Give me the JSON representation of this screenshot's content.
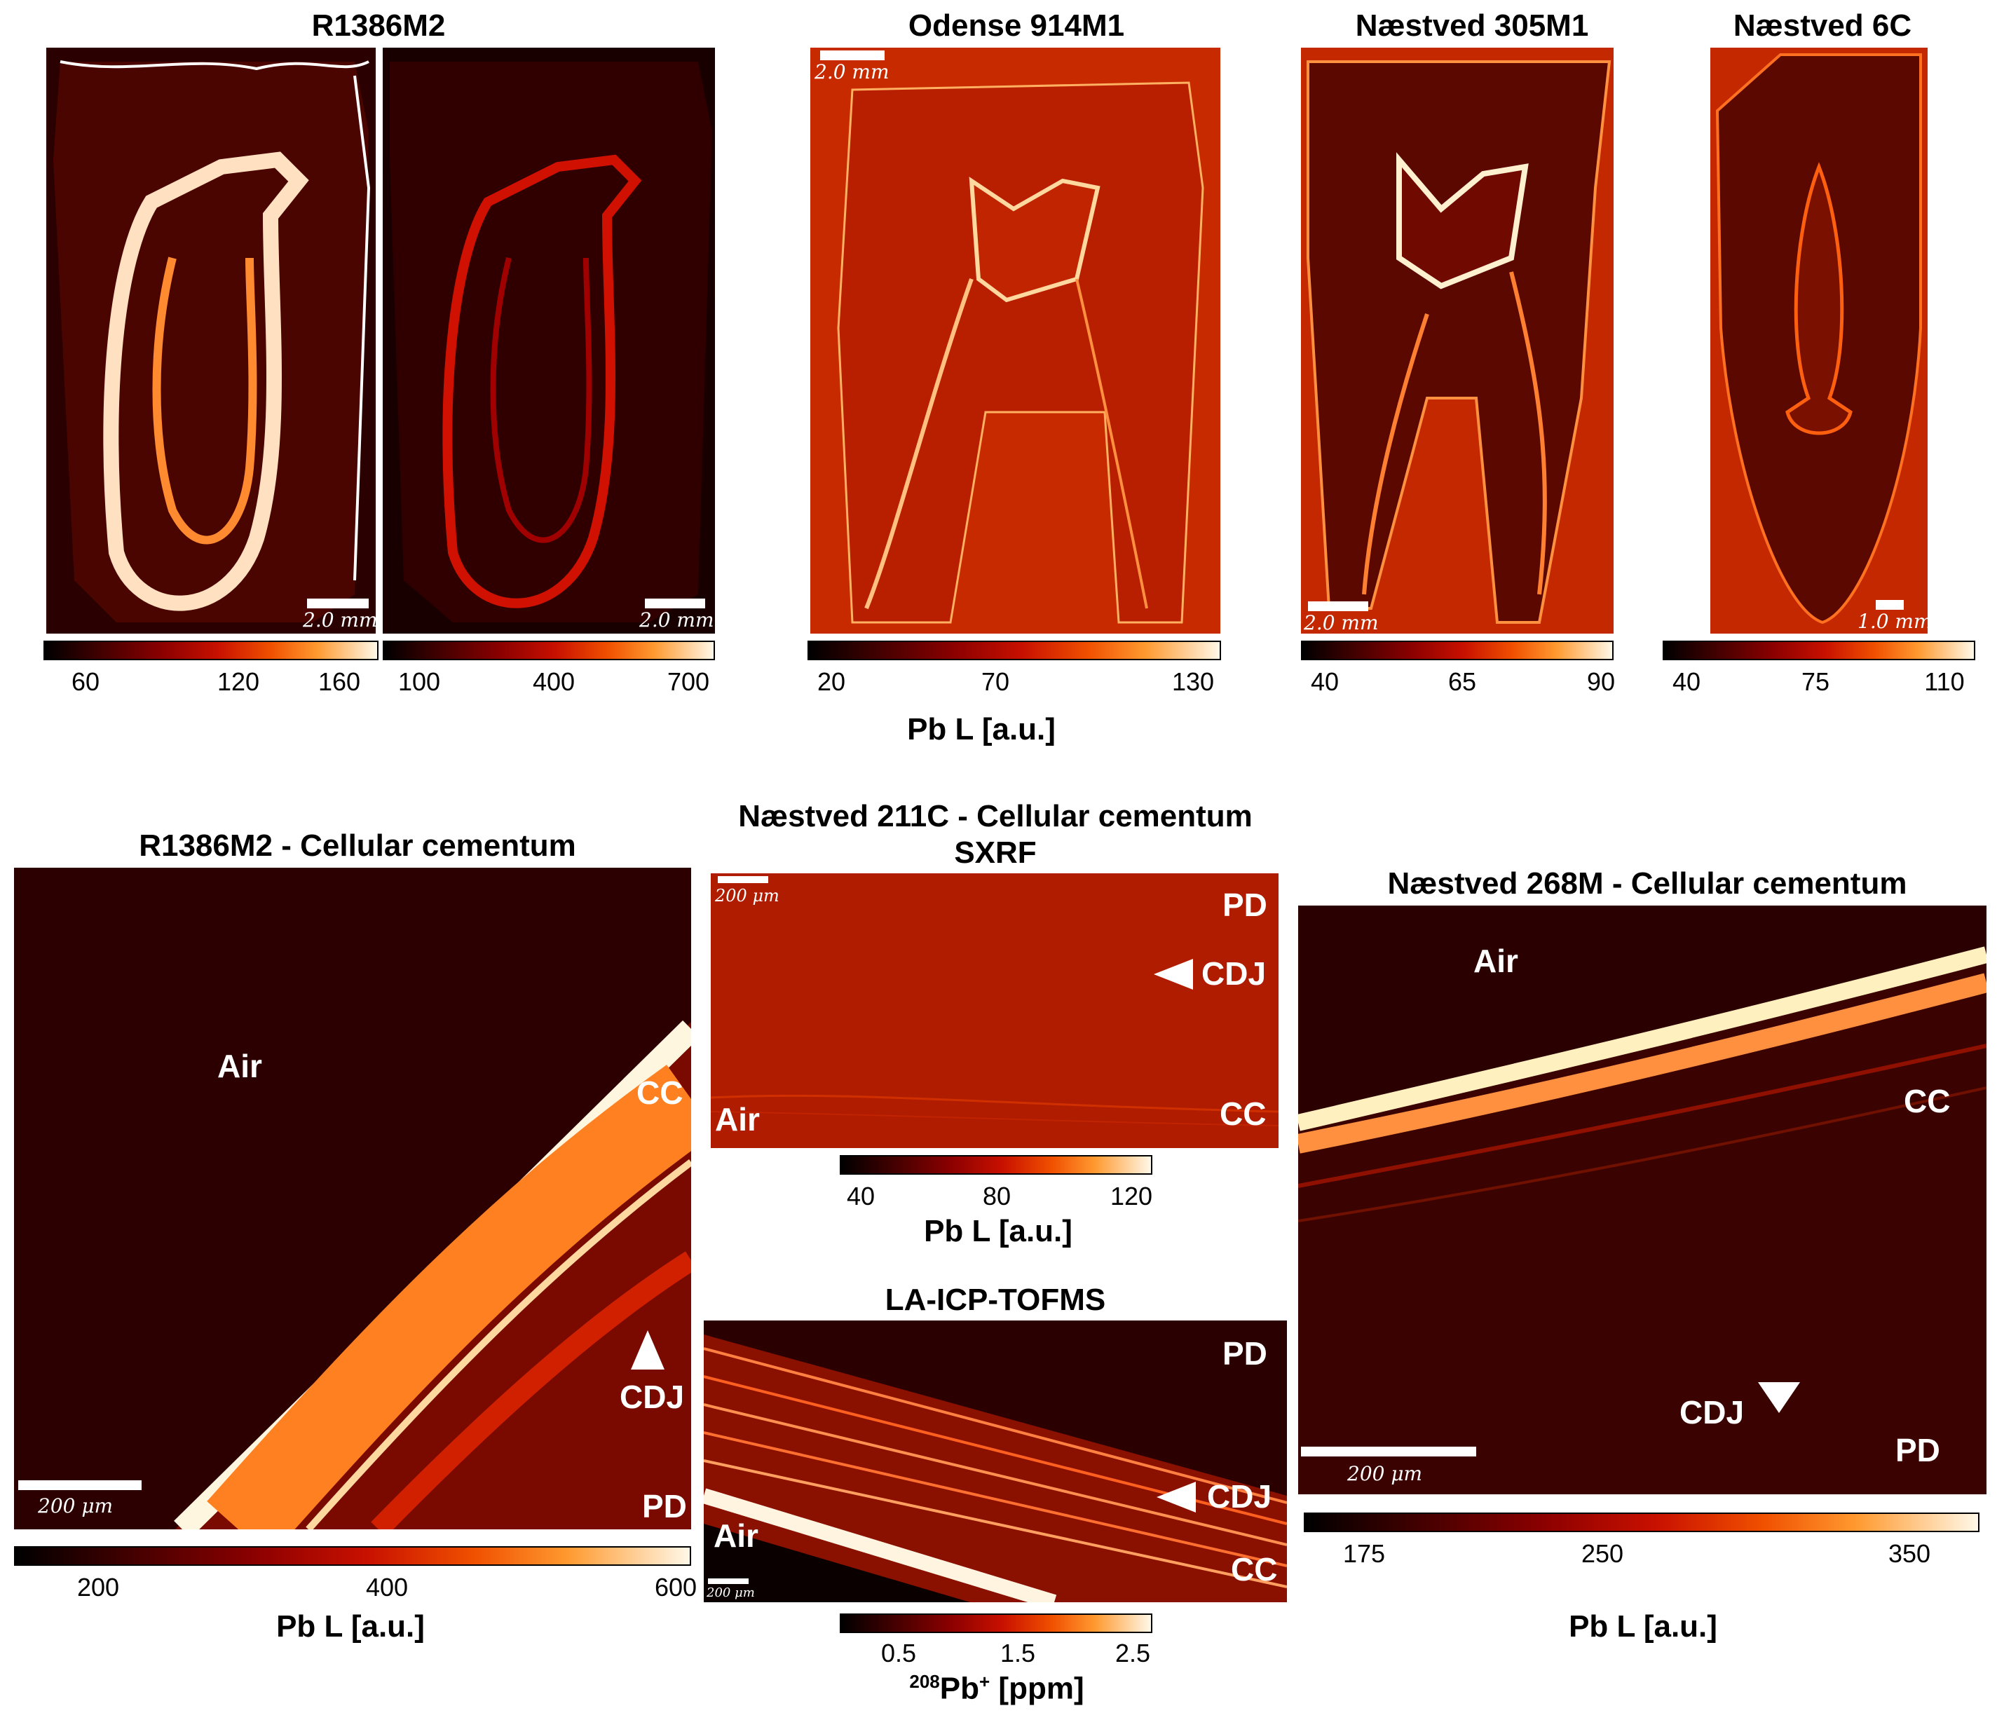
{
  "top": {
    "titles": {
      "r1386": "R1386M2",
      "odense": "Odense 914M1",
      "naestved305": "Næstved 305M1",
      "naestved6c": "Næstved 6C"
    },
    "scales": {
      "r1386_a": "2.0 mm",
      "r1386_b": "2.0 mm",
      "odense": "2.0 mm",
      "naestved305": "2.0 mm",
      "naestved6c": "1.0 mm"
    },
    "colorbars": {
      "r1386_a": [
        "60",
        "120",
        "160"
      ],
      "r1386_b": [
        "100",
        "400",
        "700"
      ],
      "odense": [
        "20",
        "70",
        "130"
      ],
      "naestved305": [
        "40",
        "65",
        "90"
      ],
      "naestved6c": [
        "40",
        "75",
        "110"
      ]
    },
    "unit": "Pb L [a.u.]"
  },
  "bottom_left": {
    "title": "R1386M2 - Cellular cementum",
    "labels": {
      "air": "Air",
      "cc": "CC",
      "cdj": "CDJ",
      "pd": "PD"
    },
    "scale": "200 μm",
    "ticks": [
      "200",
      "400",
      "600"
    ],
    "unit": "Pb L [a.u.]"
  },
  "middle_top": {
    "title_line1": "Næstved 211C - Cellular cementum",
    "title_line2": "SXRF",
    "labels": {
      "pd": "PD",
      "cdj": "CDJ",
      "air": "Air",
      "cc": "CC"
    },
    "scale": "200 μm",
    "ticks": [
      "40",
      "80",
      "120"
    ],
    "unit": "Pb L [a.u.]"
  },
  "middle_bottom": {
    "title": "LA-ICP-TOFMS",
    "labels": {
      "pd": "PD",
      "cdj": "CDJ",
      "air": "Air",
      "cc": "CC"
    },
    "scale": "200 μm",
    "ticks": [
      "0.5",
      "1.5",
      "2.5"
    ],
    "unit_sup": "208",
    "unit_main": "Pb",
    "unit_plus": "+",
    "unit_tail": " [ppm]"
  },
  "right": {
    "title": "Næstved 268M - Cellular cementum",
    "labels": {
      "air": "Air",
      "cc": "CC",
      "cdj": "CDJ",
      "pd": "PD"
    },
    "scale": "200 μm",
    "ticks": [
      "175",
      "250",
      "350"
    ],
    "unit": "Pb L [a.u.]"
  },
  "colormap": [
    "#000000",
    "#3b0000",
    "#8a0000",
    "#c81000",
    "#f05000",
    "#ff9a30",
    "#fff8e8"
  ]
}
